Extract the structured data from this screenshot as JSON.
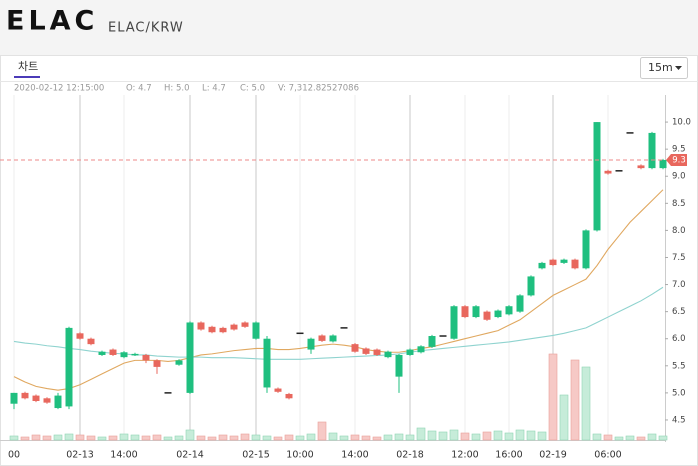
{
  "header": {
    "title": "ELAC",
    "pair": "ELAC/KRW"
  },
  "tab": "차트",
  "interval": "15m",
  "info": [
    "2020-02-12 12:15:00",
    "O: 4.7",
    "H: 5.0",
    "L: 4.7",
    "C: 5.0",
    "V: 7,312.82527086"
  ],
  "chart_data": {
    "type": "candlestick",
    "categories": [
      "00",
      null,
      null,
      null,
      null,
      null,
      "02-13",
      null,
      null,
      null,
      "14:00",
      null,
      null,
      null,
      null,
      null,
      "02-14",
      null,
      null,
      null,
      null,
      null,
      "02-15",
      null,
      null,
      null,
      "10:00",
      null,
      null,
      null,
      null,
      "14:00",
      null,
      null,
      null,
      null,
      "02-18",
      null,
      null,
      null,
      null,
      "12:00",
      null,
      null,
      null,
      "16:00",
      null,
      null,
      null,
      "02-19",
      null,
      null,
      null,
      null,
      "06:00",
      null,
      null,
      null,
      null,
      null
    ],
    "open": [
      4.8,
      5.0,
      4.95,
      4.9,
      4.72,
      4.75,
      6.1,
      6.0,
      5.7,
      5.8,
      5.66,
      5.7,
      5.7,
      5.6,
      5.0,
      5.52,
      5.0,
      6.3,
      6.22,
      6.2,
      6.26,
      6.3,
      6.0,
      5.1,
      5.08,
      4.98,
      6.1,
      5.8,
      6.06,
      5.95,
      6.2,
      5.9,
      5.82,
      5.8,
      5.66,
      5.3,
      5.7,
      5.75,
      5.85,
      6.05,
      6.0,
      6.6,
      6.4,
      6.5,
      6.4,
      6.45,
      6.5,
      6.8,
      7.3,
      7.46,
      7.4,
      7.46,
      7.3,
      8.0,
      9.1,
      9.1,
      9.8,
      9.2,
      9.15,
      9.15
    ],
    "high": [
      5.0,
      5.02,
      4.97,
      4.92,
      5.0,
      6.22,
      6.12,
      6.02,
      5.78,
      5.82,
      5.77,
      5.74,
      5.72,
      5.62,
      5.0,
      5.62,
      6.32,
      6.32,
      6.24,
      6.22,
      6.28,
      6.32,
      6.32,
      6.05,
      5.1,
      5.0,
      6.1,
      6.02,
      6.08,
      6.08,
      6.2,
      5.92,
      5.84,
      5.82,
      5.78,
      5.72,
      5.82,
      5.88,
      6.07,
      6.05,
      6.62,
      6.62,
      6.62,
      6.52,
      6.54,
      6.62,
      6.82,
      7.17,
      7.42,
      7.48,
      7.48,
      7.48,
      8.02,
      10.0,
      9.12,
      9.1,
      9.8,
      9.22,
      9.82,
      9.32
    ],
    "low": [
      4.7,
      4.88,
      4.83,
      4.8,
      4.7,
      4.7,
      5.98,
      5.88,
      5.68,
      5.68,
      5.64,
      5.68,
      5.55,
      5.35,
      5.0,
      5.5,
      4.98,
      6.15,
      6.1,
      6.1,
      6.15,
      6.2,
      5.98,
      5.0,
      5.0,
      4.88,
      6.1,
      5.72,
      5.94,
      5.93,
      6.2,
      5.74,
      5.7,
      5.68,
      5.64,
      5.0,
      5.68,
      5.73,
      5.83,
      6.05,
      5.98,
      6.38,
      6.38,
      6.33,
      6.38,
      6.43,
      6.48,
      6.78,
      7.28,
      7.34,
      7.38,
      7.28,
      7.28,
      7.98,
      9.03,
      9.1,
      9.8,
      9.13,
      9.13,
      9.13
    ],
    "close": [
      5.0,
      4.9,
      4.85,
      4.82,
      4.95,
      6.2,
      6.0,
      5.9,
      5.76,
      5.7,
      5.75,
      5.72,
      5.6,
      5.48,
      5.0,
      5.6,
      6.3,
      6.17,
      6.12,
      6.12,
      6.17,
      6.22,
      6.3,
      6.0,
      5.02,
      4.9,
      6.1,
      6.0,
      5.96,
      6.06,
      6.2,
      5.76,
      5.72,
      5.7,
      5.76,
      5.7,
      5.8,
      5.86,
      6.05,
      6.05,
      6.6,
      6.4,
      6.6,
      6.35,
      6.52,
      6.6,
      6.8,
      7.15,
      7.4,
      7.36,
      7.46,
      7.3,
      8.0,
      10.0,
      9.05,
      9.1,
      9.8,
      9.15,
      9.8,
      9.3
    ],
    "volume": [
      4,
      3,
      5,
      4,
      5,
      6,
      5,
      4,
      3,
      4,
      6,
      5,
      4,
      5,
      3,
      4,
      10,
      4,
      3,
      5,
      4,
      6,
      5,
      4,
      3,
      5,
      4,
      6,
      18,
      7,
      4,
      5,
      4,
      3,
      5,
      6,
      5,
      12,
      9,
      8,
      10,
      7,
      6,
      8,
      9,
      7,
      10,
      9,
      8,
      86,
      45,
      80,
      73,
      6,
      5,
      3,
      4,
      3,
      6,
      4
    ],
    "vlim": [
      0,
      100
    ],
    "series": [
      {
        "color": "#e0a860",
        "values": [
          5.3,
          5.2,
          5.12,
          5.08,
          5.05,
          5.08,
          5.15,
          5.25,
          5.35,
          5.45,
          5.55,
          5.6,
          5.6,
          5.6,
          5.58,
          5.6,
          5.65,
          5.7,
          5.72,
          5.75,
          5.78,
          5.8,
          5.82,
          5.82,
          5.8,
          5.8,
          5.82,
          5.85,
          5.88,
          5.9,
          5.88,
          5.85,
          5.8,
          5.77,
          5.75,
          5.75,
          5.78,
          5.82,
          5.85,
          5.9,
          5.95,
          6.0,
          6.05,
          6.1,
          6.15,
          6.25,
          6.35,
          6.5,
          6.65,
          6.8,
          6.9,
          7.0,
          7.1,
          7.35,
          7.65,
          7.9,
          8.15,
          8.35,
          8.55,
          8.75
        ]
      },
      {
        "color": "#8fd3cf",
        "values": [
          5.95,
          5.92,
          5.9,
          5.87,
          5.85,
          5.82,
          5.8,
          5.77,
          5.75,
          5.73,
          5.72,
          5.7,
          5.7,
          5.68,
          5.67,
          5.66,
          5.66,
          5.66,
          5.65,
          5.65,
          5.65,
          5.64,
          5.63,
          5.62,
          5.62,
          5.62,
          5.62,
          5.63,
          5.64,
          5.65,
          5.66,
          5.67,
          5.68,
          5.69,
          5.7,
          5.72,
          5.75,
          5.78,
          5.8,
          5.82,
          5.84,
          5.86,
          5.88,
          5.9,
          5.92,
          5.94,
          5.97,
          6.0,
          6.03,
          6.06,
          6.1,
          6.15,
          6.2,
          6.3,
          6.4,
          6.5,
          6.6,
          6.7,
          6.82,
          6.95
        ]
      }
    ],
    "up_color": "#1fbf7f",
    "down_color": "#e8675d",
    "current_price": 9.3,
    "ylim": [
      4.13,
      10.5
    ],
    "yticks": [
      {
        "value": 4.5,
        "label": "4.5"
      },
      {
        "value": 5,
        "label": "5.0"
      },
      {
        "value": 5.5,
        "label": "5.5"
      },
      {
        "value": 6,
        "label": "6.0"
      },
      {
        "value": 6.5,
        "label": "6.5"
      },
      {
        "value": 7,
        "label": "7.0"
      },
      {
        "value": 7.5,
        "label": "7.5"
      },
      {
        "value": 8,
        "label": "8.0"
      },
      {
        "value": 8.5,
        "label": "8.5"
      },
      {
        "value": 9,
        "label": "9.0"
      },
      {
        "value": 9.5,
        "label": "9.5"
      },
      {
        "value": 10,
        "label": "10.0"
      }
    ]
  }
}
